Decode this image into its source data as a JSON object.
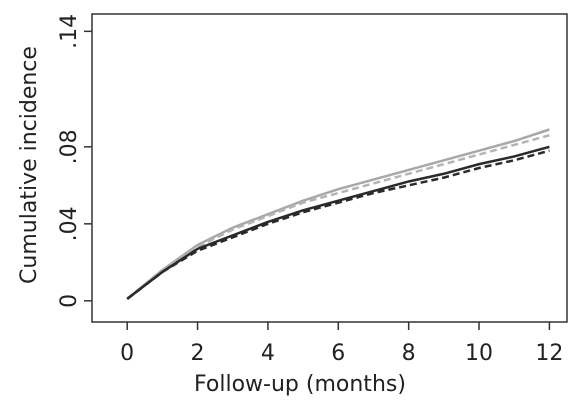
{
  "chart_data": {
    "type": "line",
    "xlabel": "Follow-up (months)",
    "ylabel": "Cumulative incidence",
    "x": [
      0,
      1,
      2,
      3,
      4,
      5,
      6,
      7,
      8,
      9,
      10,
      11,
      12
    ],
    "series": [
      {
        "color": "#a8a8a8",
        "style": "solid",
        "values": [
          0.001,
          0.016,
          0.029,
          0.038,
          0.045,
          0.052,
          0.058,
          0.063,
          0.068,
          0.073,
          0.078,
          0.083,
          0.089
        ]
      },
      {
        "color": "#b4b4b4",
        "style": "dashed",
        "values": [
          0.001,
          0.016,
          0.028,
          0.037,
          0.044,
          0.051,
          0.056,
          0.061,
          0.066,
          0.071,
          0.076,
          0.081,
          0.086
        ]
      },
      {
        "color": "#2a2a2a",
        "style": "solid",
        "values": [
          0.001,
          0.015,
          0.027,
          0.034,
          0.041,
          0.047,
          0.052,
          0.057,
          0.062,
          0.066,
          0.071,
          0.075,
          0.08
        ]
      },
      {
        "color": "#2a2a2a",
        "style": "dashed",
        "values": [
          0.001,
          0.015,
          0.026,
          0.033,
          0.04,
          0.046,
          0.051,
          0.056,
          0.06,
          0.064,
          0.069,
          0.073,
          0.078
        ]
      }
    ],
    "xlim": [
      -1,
      12.5
    ],
    "xticks": [
      0,
      2,
      4,
      6,
      8,
      10,
      12
    ],
    "ylim": [
      -0.011,
      0.149
    ],
    "yticks": [
      0,
      {
        "value": 0.04,
        "label": ".04"
      },
      {
        "value": 0.08,
        "label": ".08"
      },
      {
        "value": 0.14,
        "label": ".14"
      }
    ]
  }
}
